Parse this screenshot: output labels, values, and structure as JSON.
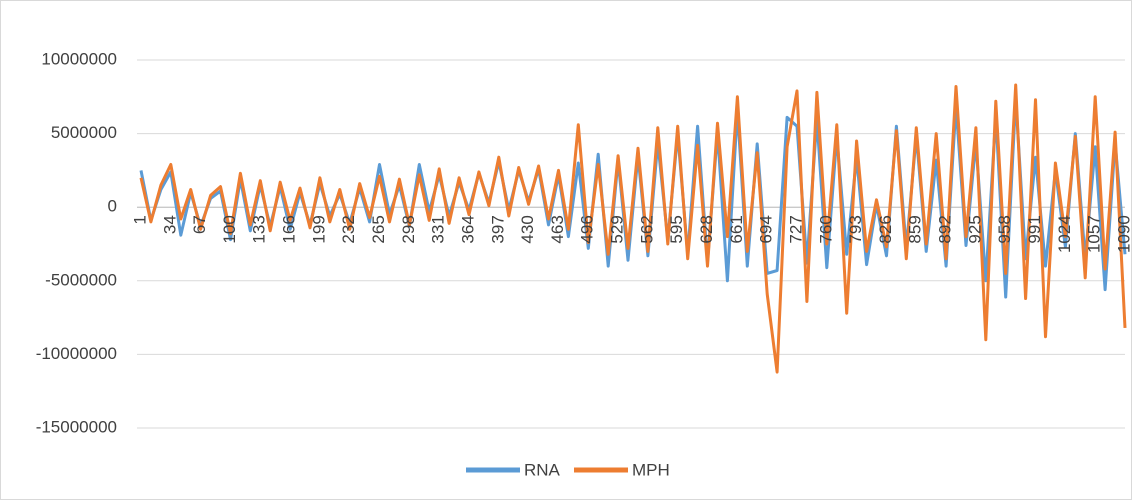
{
  "chart_data": {
    "type": "line",
    "x": [
      1,
      12,
      23,
      34,
      45,
      56,
      67,
      78,
      89,
      100,
      111,
      122,
      133,
      144,
      155,
      166,
      177,
      188,
      199,
      210,
      221,
      232,
      243,
      254,
      265,
      276,
      287,
      298,
      309,
      320,
      331,
      342,
      353,
      364,
      375,
      386,
      397,
      408,
      419,
      430,
      441,
      452,
      463,
      474,
      485,
      496,
      507,
      518,
      529,
      540,
      551,
      562,
      573,
      584,
      595,
      606,
      617,
      628,
      639,
      650,
      661,
      672,
      683,
      694,
      705,
      716,
      727,
      738,
      749,
      760,
      771,
      782,
      793,
      804,
      815,
      826,
      837,
      848,
      859,
      870,
      881,
      892,
      903,
      914,
      925,
      936,
      947,
      958,
      969,
      980,
      991,
      1002,
      1013,
      1024,
      1035,
      1046,
      1057,
      1068,
      1079,
      1090
    ],
    "series": [
      {
        "name": "RNA",
        "color": "#5b9bd5",
        "values": [
          2500000,
          -900000,
          1200000,
          2400000,
          -1900000,
          1000000,
          -1300000,
          600000,
          1100000,
          -2200000,
          1900000,
          -1600000,
          1500000,
          -1300000,
          1400000,
          -1500000,
          1000000,
          -1200000,
          1600000,
          -600000,
          900000,
          -1100000,
          1300000,
          -1000000,
          2900000,
          -500000,
          1500000,
          -1300000,
          2900000,
          -300000,
          2200000,
          -600000,
          1700000,
          -200000,
          2300000,
          300000,
          3100000,
          -200000,
          2500000,
          400000,
          2600000,
          -1200000,
          2200000,
          -2000000,
          3000000,
          -2800000,
          3600000,
          -4000000,
          3200000,
          -3600000,
          3500000,
          -3300000,
          4400000,
          -2200000,
          5000000,
          -3200000,
          5500000,
          -3700000,
          5100000,
          -5000000,
          6600000,
          -4000000,
          4300000,
          -4500000,
          -4300000,
          6100000,
          5500000,
          -3800000,
          6000000,
          -4100000,
          4800000,
          -3200000,
          3400000,
          -3900000,
          200000,
          -3300000,
          5500000,
          -2800000,
          4900000,
          -3000000,
          3200000,
          -4000000,
          6900000,
          -2600000,
          4400000,
          -5000000,
          6200000,
          -6100000,
          7400000,
          -3500000,
          3400000,
          -4000000,
          2500000,
          -2700000,
          5000000,
          -3500000,
          4100000,
          -5600000,
          4400000,
          -3200000
        ]
      },
      {
        "name": "MPH",
        "color": "#ed7d31",
        "values": [
          2000000,
          -1000000,
          1500000,
          2900000,
          -800000,
          1200000,
          -1500000,
          800000,
          1400000,
          -1800000,
          2300000,
          -1200000,
          1800000,
          -1600000,
          1700000,
          -900000,
          1300000,
          -1400000,
          2000000,
          -1000000,
          1200000,
          -1500000,
          1600000,
          -700000,
          2100000,
          -1000000,
          1900000,
          -1200000,
          2200000,
          -900000,
          2600000,
          -1100000,
          2000000,
          -500000,
          2400000,
          100000,
          3400000,
          -600000,
          2700000,
          200000,
          2800000,
          -800000,
          2500000,
          -1500000,
          5600000,
          -2400000,
          2900000,
          -3200000,
          3500000,
          -2800000,
          4000000,
          -3000000,
          5400000,
          -2500000,
          5500000,
          -3500000,
          4200000,
          -4000000,
          5700000,
          -2000000,
          7500000,
          -3000000,
          3700000,
          -5900000,
          -11200000,
          4100000,
          7900000,
          -6400000,
          7800000,
          -2500000,
          5600000,
          -7200000,
          4500000,
          -3000000,
          500000,
          -2700000,
          5200000,
          -3500000,
          5400000,
          -2500000,
          5000000,
          -3500000,
          8200000,
          -2000000,
          5400000,
          -9000000,
          7200000,
          -4500000,
          8300000,
          -6200000,
          7300000,
          -8800000,
          3000000,
          -2000000,
          4800000,
          -4800000,
          7500000,
          -4200000,
          5100000,
          -8200000
        ]
      }
    ],
    "xlim": [
      1,
      1090
    ],
    "xticks": [
      1,
      34,
      67,
      100,
      133,
      166,
      199,
      232,
      265,
      298,
      331,
      364,
      397,
      430,
      463,
      496,
      529,
      562,
      595,
      628,
      661,
      694,
      727,
      760,
      793,
      826,
      859,
      892,
      925,
      958,
      991,
      1024,
      1057,
      1090
    ],
    "ylim": [
      -15000000,
      10000000
    ],
    "yticks": [
      -15000000,
      -10000000,
      -5000000,
      0,
      5000000,
      10000000
    ],
    "grid": true
  }
}
